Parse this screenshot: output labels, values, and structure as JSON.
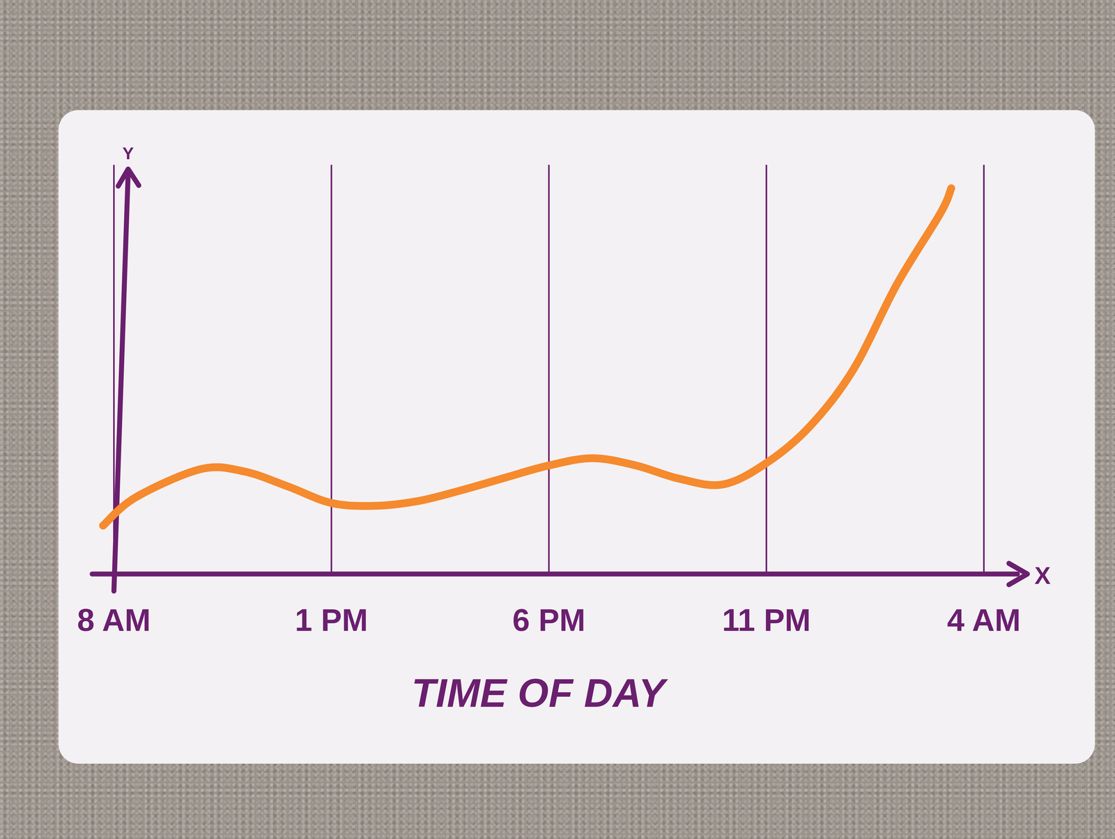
{
  "chart_data": {
    "type": "line",
    "x_label": "TIME OF DAY",
    "y_axis_symbol": "Y",
    "x_axis_symbol": "X",
    "x": [
      -0.25,
      0.5,
      2,
      3,
      4,
      5,
      6,
      7,
      8,
      9,
      10,
      11,
      12,
      13,
      14,
      15,
      16,
      17,
      18,
      19,
      19.25
    ],
    "values": [
      12,
      19,
      26,
      25.4,
      21.7,
      17.6,
      16.9,
      18.1,
      20.8,
      23.9,
      26.9,
      28.7,
      26.9,
      23.6,
      22.2,
      27.5,
      36.6,
      50.7,
      71.8,
      89.4,
      95.6
    ],
    "color": "#f58a2e",
    "xlim": [
      -0.5,
      21
    ],
    "ylim": [
      0,
      100
    ],
    "xticks": [
      {
        "value": 0,
        "label": "8 AM"
      },
      {
        "value": 5,
        "label": "1 PM"
      },
      {
        "value": 10,
        "label": "6 PM"
      },
      {
        "value": 15,
        "label": "11 PM"
      },
      {
        "value": 20,
        "label": "4 AM"
      }
    ],
    "yticks": [],
    "grid": true,
    "tick_labels": "x"
  }
}
